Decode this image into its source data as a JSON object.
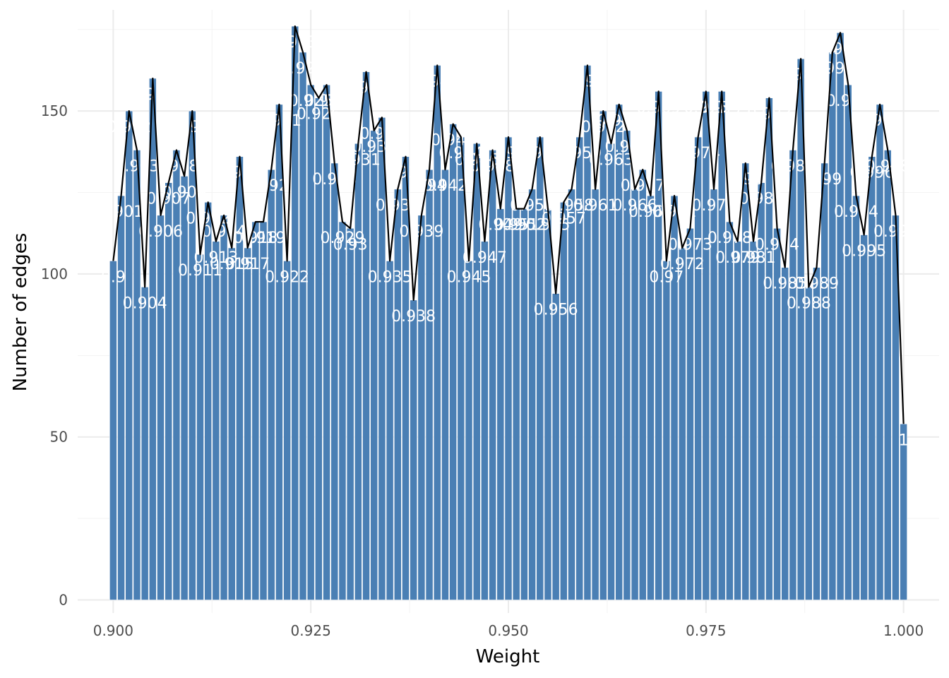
{
  "colors": {
    "bar_fill": "#4a7fb4",
    "line": "#000000",
    "label": "#ffffff",
    "grid": "#ebebeb",
    "background": "#ffffff"
  },
  "chart_data": {
    "type": "bar",
    "xlabel": "Weight",
    "ylabel": "Number of edges",
    "xlim": [
      0.8955,
      1.0045
    ],
    "ylim": [
      -4,
      181
    ],
    "x_ticks": [
      0.9,
      0.925,
      0.95,
      0.975,
      1.0
    ],
    "x_tick_labels": [
      "0.900",
      "0.925",
      "0.950",
      "0.975",
      "1.000"
    ],
    "y_ticks": [
      0,
      50,
      100,
      150
    ],
    "y_tick_labels": [
      "0",
      "50",
      "100",
      "150"
    ],
    "grid": true,
    "legend": "none",
    "overlay": "line connecting bar tops",
    "x": [
      0.9,
      0.901,
      0.902,
      0.903,
      0.904,
      0.905,
      0.906,
      0.907,
      0.908,
      0.909,
      0.91,
      0.911,
      0.912,
      0.913,
      0.914,
      0.915,
      0.916,
      0.917,
      0.918,
      0.919,
      0.92,
      0.921,
      0.922,
      0.923,
      0.924,
      0.925,
      0.926,
      0.927,
      0.928,
      0.929,
      0.93,
      0.931,
      0.932,
      0.933,
      0.934,
      0.935,
      0.936,
      0.937,
      0.938,
      0.939,
      0.94,
      0.941,
      0.942,
      0.943,
      0.944,
      0.945,
      0.946,
      0.947,
      0.948,
      0.949,
      0.95,
      0.951,
      0.952,
      0.953,
      0.954,
      0.955,
      0.956,
      0.957,
      0.958,
      0.959,
      0.96,
      0.961,
      0.962,
      0.963,
      0.964,
      0.965,
      0.966,
      0.967,
      0.968,
      0.969,
      0.97,
      0.971,
      0.972,
      0.973,
      0.974,
      0.975,
      0.976,
      0.977,
      0.978,
      0.979,
      0.98,
      0.981,
      0.982,
      0.983,
      0.984,
      0.985,
      0.986,
      0.987,
      0.988,
      0.989,
      0.99,
      0.991,
      0.992,
      0.993,
      0.994,
      0.995,
      0.996,
      0.997,
      0.998,
      0.999,
      1.0
    ],
    "values": [
      104,
      124,
      150,
      138,
      96,
      160,
      118,
      128,
      138,
      130,
      150,
      106,
      122,
      110,
      118,
      108,
      136,
      108,
      116,
      116,
      132,
      152,
      104,
      176,
      168,
      158,
      154,
      158,
      134,
      116,
      114,
      140,
      162,
      144,
      148,
      104,
      126,
      136,
      92,
      118,
      132,
      164,
      132,
      146,
      142,
      104,
      140,
      110,
      138,
      120,
      142,
      120,
      120,
      126,
      142,
      120,
      94,
      122,
      126,
      142,
      164,
      126,
      150,
      140,
      152,
      144,
      126,
      132,
      124,
      156,
      104,
      124,
      108,
      114,
      142,
      156,
      126,
      156,
      116,
      110,
      134,
      110,
      128,
      154,
      114,
      102,
      138,
      166,
      96,
      102,
      134,
      168,
      174,
      158,
      124,
      112,
      136,
      152,
      138,
      118,
      54
    ],
    "labels": [
      "0.9",
      "0.901",
      "0.902",
      "0.903",
      "0.904",
      "0.905",
      "0.906",
      "0.907",
      "0.908",
      "0.909",
      "0.91",
      "0.911",
      "0.912",
      "0.913",
      "0.914",
      "0.915",
      "0.916",
      "0.917",
      "0.918",
      "0.919",
      "0.92",
      "0.921",
      "0.922",
      "0.923",
      "0.924",
      "0.925",
      "0.926",
      "0.927",
      "0.928",
      "0.929",
      "0.93",
      "0.931",
      "0.932",
      "0.933",
      "0.934",
      "0.935",
      "0.936",
      "0.937",
      "0.938",
      "0.939",
      "0.94",
      "0.941",
      "0.942",
      "0.943",
      "0.944",
      "0.945",
      "0.946",
      "0.947",
      "0.948",
      "0.949",
      "0.95",
      "0.951",
      "0.952",
      "0.953",
      "0.954",
      "0.955",
      "0.956",
      "0.957",
      "0.958",
      "0.959",
      "0.96",
      "0.961",
      "0.962",
      "0.963",
      "0.964",
      "0.965",
      "0.966",
      "0.967",
      "0.968",
      "0.969",
      "0.97",
      "0.971",
      "0.972",
      "0.973",
      "0.974",
      "0.975",
      "0.976",
      "0.977",
      "0.978",
      "0.979",
      "0.98",
      "0.981",
      "0.982",
      "0.983",
      "0.984",
      "0.985",
      "0.986",
      "0.987",
      "0.988",
      "0.989",
      "0.99",
      "0.991",
      "0.992",
      "0.993",
      "0.994",
      "0.995",
      "0.996",
      "0.997",
      "0.998",
      "0.999",
      "1"
    ]
  }
}
